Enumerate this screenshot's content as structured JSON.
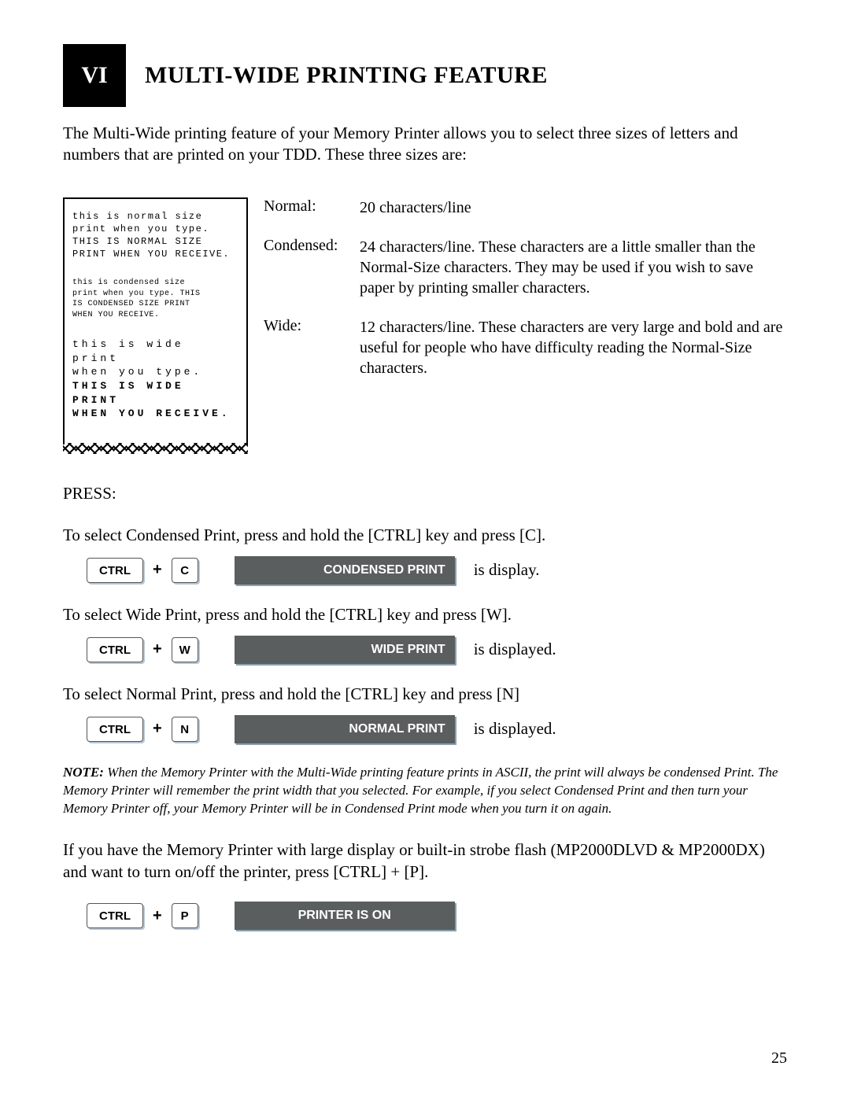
{
  "header": {
    "chapter_number": "VI",
    "title": "MULTI-WIDE PRINTING FEATURE"
  },
  "intro": "The Multi-Wide printing feature of your Memory Printer allows you to select three sizes of letters and numbers that are printed on your TDD. These three sizes are:",
  "receipt": {
    "normal": {
      "l1": "this is normal size",
      "l2": "print when you type.",
      "l3": "THIS IS NORMAL SIZE",
      "l4": "PRINT WHEN YOU RECEIVE."
    },
    "condensed": {
      "l1": "this is condensed size",
      "l2": "print when you type. THIS",
      "l3": "IS CONDENSED SIZE PRINT",
      "l4": "WHEN YOU RECEIVE."
    },
    "wide": {
      "l1": "this is wide print",
      "l2": "when you type.",
      "l3": "THIS IS WIDE PRINT",
      "l4": "WHEN YOU RECEIVE."
    }
  },
  "sizes": {
    "normal": {
      "label": "Normal:",
      "desc": "20 characters/line"
    },
    "condensed": {
      "label": "Condensed:",
      "desc": "24 characters/line. These characters are a little smaller than the Normal-Size characters. They may be used if you wish to save paper by printing smaller characters."
    },
    "wide": {
      "label": "Wide:",
      "desc": "12 characters/line. These characters are very large and bold and are useful for people who have difficulty reading the Normal-Size characters."
    }
  },
  "press_label": "PRESS:",
  "seq": {
    "condensed": {
      "instruction": "To select Condensed Print, press and hold the [CTRL] key and press [C].",
      "ctrl": "CTRL",
      "plus": "+",
      "key": "C",
      "display": "CONDENSED PRINT",
      "suffix": "is display."
    },
    "wide": {
      "instruction": "To select Wide Print, press and hold the [CTRL] key and press [W].",
      "ctrl": "CTRL",
      "plus": "+",
      "key": "W",
      "display": "WIDE PRINT",
      "suffix": "is displayed."
    },
    "normal": {
      "instruction": "To select Normal Print, press and hold the [CTRL] key and press [N]",
      "ctrl": "CTRL",
      "plus": "+",
      "key": "N",
      "display": "NORMAL PRINT",
      "suffix": "is displayed."
    },
    "printer": {
      "ctrl": "CTRL",
      "plus": "+",
      "key": "P",
      "display": "PRINTER IS ON"
    }
  },
  "note": {
    "label": "NOTE:",
    "text": "When the Memory Printer with the Multi-Wide printing feature prints in ASCII, the print will always be condensed Print. The Memory Printer will remember the print width that you selected. For example, if you select Condensed Print and then turn your Memory Printer off, your Memory Printer will be in Condensed Print mode when you turn it on again."
  },
  "printer_toggle_text": "If you have the Memory Printer with large display or built-in strobe flash (MP2000DLVD & MP2000DX) and want to turn on/off the printer, press [CTRL] + [P].",
  "page_number": "25"
}
